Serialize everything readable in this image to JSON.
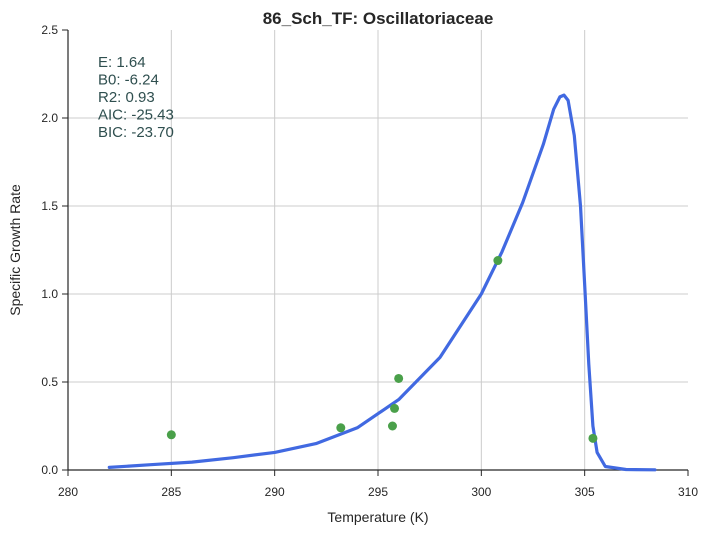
{
  "chart_data": {
    "type": "scatter",
    "title": "86_Sch_TF: Oscillatoriaceae",
    "xlabel": "Temperature (K)",
    "ylabel": "Specific Growth Rate",
    "xlim": [
      280,
      310
    ],
    "ylim": [
      0.0,
      2.5
    ],
    "xticks": [
      "280",
      "285",
      "290",
      "295",
      "300",
      "305",
      "310"
    ],
    "yticks": [
      "0.0",
      "0.5",
      "1.0",
      "1.5",
      "2.0",
      "2.5"
    ],
    "grid": true,
    "annotation_lines": [
      "E:  1.64",
      "B0:  -6.24",
      "R2:  0.93",
      "AIC: -25.43",
      "BIC: -23.70"
    ],
    "series": [
      {
        "type": "scatter",
        "color": "#4aa04a",
        "points": [
          {
            "x": 285.0,
            "y": 0.2
          },
          {
            "x": 293.2,
            "y": 0.24
          },
          {
            "x": 295.7,
            "y": 0.25
          },
          {
            "x": 295.8,
            "y": 0.35
          },
          {
            "x": 296.0,
            "y": 0.52
          },
          {
            "x": 300.8,
            "y": 1.19
          },
          {
            "x": 305.4,
            "y": 0.18
          }
        ]
      },
      {
        "type": "line",
        "color": "#4169e1",
        "points": [
          {
            "x": 282.0,
            "y": 0.015
          },
          {
            "x": 284.0,
            "y": 0.03
          },
          {
            "x": 286.0,
            "y": 0.045
          },
          {
            "x": 288.0,
            "y": 0.07
          },
          {
            "x": 290.0,
            "y": 0.1
          },
          {
            "x": 292.0,
            "y": 0.15
          },
          {
            "x": 294.0,
            "y": 0.24
          },
          {
            "x": 296.0,
            "y": 0.4
          },
          {
            "x": 298.0,
            "y": 0.64
          },
          {
            "x": 300.0,
            "y": 1.0
          },
          {
            "x": 301.0,
            "y": 1.24
          },
          {
            "x": 302.0,
            "y": 1.52
          },
          {
            "x": 303.0,
            "y": 1.85
          },
          {
            "x": 303.5,
            "y": 2.05
          },
          {
            "x": 303.8,
            "y": 2.12
          },
          {
            "x": 304.0,
            "y": 2.13
          },
          {
            "x": 304.2,
            "y": 2.1
          },
          {
            "x": 304.5,
            "y": 1.9
          },
          {
            "x": 304.8,
            "y": 1.5
          },
          {
            "x": 305.0,
            "y": 1.05
          },
          {
            "x": 305.2,
            "y": 0.6
          },
          {
            "x": 305.4,
            "y": 0.25
          },
          {
            "x": 305.6,
            "y": 0.1
          },
          {
            "x": 306.0,
            "y": 0.02
          },
          {
            "x": 307.0,
            "y": 0.003
          },
          {
            "x": 308.4,
            "y": 0.001
          }
        ]
      }
    ]
  }
}
